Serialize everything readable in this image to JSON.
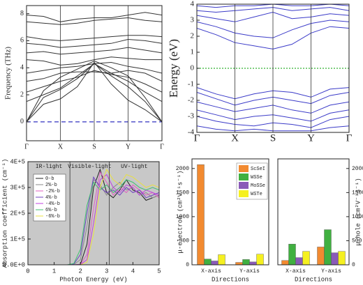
{
  "chart_data": [
    {
      "type": "line",
      "ylabel": "Frequency (THz)",
      "color": "#333333",
      "xgrid": true,
      "hline": 0,
      "hline_color": "#3030c0",
      "x": [
        0,
        0.5,
        1,
        1.5,
        2,
        2.5,
        3,
        3.5,
        4
      ],
      "xlim": [
        0,
        4
      ],
      "xticks": [
        {
          "value": 0,
          "label": "Γ"
        },
        {
          "value": 1,
          "label": "X"
        },
        {
          "value": 2,
          "label": "S"
        },
        {
          "value": 3,
          "label": "Y"
        },
        {
          "value": 4,
          "label": "Γ"
        }
      ],
      "ylim": [
        -1.4,
        8.6
      ],
      "yticks": [
        0,
        2,
        4,
        6,
        8
      ],
      "series": [
        {
          "values": [
            0,
            1.3,
            1.7,
            2.6,
            4.4,
            2.8,
            1.6,
            0.9,
            0
          ]
        },
        {
          "values": [
            0,
            1.8,
            2.4,
            3.2,
            4.3,
            3.4,
            2.6,
            1.5,
            0
          ]
        },
        {
          "values": [
            0,
            2.3,
            3.3,
            3.9,
            4.5,
            4.0,
            3.4,
            1.8,
            0
          ]
        },
        {
          "values": [
            1.5,
            2.0,
            2.5,
            3.4,
            4.3,
            3.6,
            3.0,
            2.2,
            1.5
          ]
        },
        {
          "values": [
            2.2,
            2.6,
            3.0,
            3.3,
            3.8,
            3.5,
            3.3,
            2.8,
            2.2
          ]
        },
        {
          "values": [
            3.0,
            3.2,
            3.6,
            3.7,
            3.7,
            3.6,
            3.8,
            3.6,
            3.0
          ]
        },
        {
          "values": [
            3.6,
            3.8,
            4.0,
            4.1,
            4.3,
            4.4,
            4.1,
            3.9,
            3.6
          ]
        },
        {
          "values": [
            4.6,
            4.5,
            4.2,
            4.3,
            4.6,
            4.8,
            4.7,
            4.6,
            4.6
          ]
        },
        {
          "values": [
            5.1,
            5.2,
            5.0,
            5.1,
            5.2,
            5.3,
            5.5,
            5.3,
            5.1
          ]
        },
        {
          "values": [
            5.8,
            5.7,
            5.5,
            5.6,
            5.7,
            5.8,
            6.1,
            6.0,
            5.8
          ]
        },
        {
          "values": [
            6.3,
            6.1,
            6.0,
            6.1,
            6.2,
            6.3,
            6.4,
            6.4,
            6.3
          ]
        },
        {
          "values": [
            7.4,
            7.3,
            7.2,
            7.3,
            7.5,
            7.6,
            7.7,
            7.5,
            7.4
          ]
        },
        {
          "values": [
            7.9,
            7.8,
            7.4,
            7.6,
            7.7,
            7.7,
            7.9,
            8.1,
            7.9
          ]
        }
      ]
    },
    {
      "type": "line",
      "ylabel": "Energy (eV)",
      "color": "#3a3ac8",
      "xgrid": true,
      "hline": 0,
      "hline_color": "#30b030",
      "x": [
        0,
        0.5,
        1,
        1.5,
        2,
        2.5,
        3,
        3.5,
        4
      ],
      "xlim": [
        0,
        4
      ],
      "xticks": [
        {
          "value": 0,
          "label": "Γ"
        },
        {
          "value": 1,
          "label": "X"
        },
        {
          "value": 2,
          "label": "S"
        },
        {
          "value": 3,
          "label": "Y"
        },
        {
          "value": 4,
          "label": "Γ"
        }
      ],
      "ylim": [
        -4,
        4
      ],
      "yticks": [
        -4,
        -3,
        -2,
        -1,
        0,
        1,
        2,
        3,
        4
      ],
      "series": [
        {
          "values": [
            2.5,
            2.1,
            1.6,
            1.4,
            1.2,
            1.5,
            2.2,
            2.6,
            2.5
          ]
        },
        {
          "values": [
            2.9,
            2.6,
            2.2,
            2.0,
            1.9,
            2.4,
            2.8,
            3.0,
            2.9
          ]
        },
        {
          "values": [
            3.3,
            3.1,
            2.9,
            3.2,
            3.5,
            3.1,
            3.2,
            3.4,
            3.3
          ]
        },
        {
          "values": [
            3.6,
            3.5,
            3.6,
            3.7,
            3.8,
            3.6,
            3.7,
            3.8,
            3.6
          ]
        },
        {
          "values": [
            3.9,
            3.8,
            3.9,
            3.9,
            4.0,
            3.9,
            3.9,
            4.0,
            3.9
          ]
        },
        {
          "values": [
            -1.2,
            -1.6,
            -1.9,
            -1.6,
            -1.4,
            -1.5,
            -1.8,
            -1.3,
            -1.2
          ]
        },
        {
          "values": [
            -1.5,
            -1.9,
            -2.3,
            -2.0,
            -1.8,
            -2.0,
            -2.2,
            -1.7,
            -1.5
          ]
        },
        {
          "values": [
            -2.1,
            -2.4,
            -2.7,
            -2.5,
            -2.3,
            -2.6,
            -2.8,
            -2.3,
            -2.1
          ]
        },
        {
          "values": [
            -2.6,
            -2.9,
            -3.2,
            -3.0,
            -2.9,
            -3.1,
            -3.3,
            -2.8,
            -2.6
          ]
        },
        {
          "values": [
            -3.0,
            -3.3,
            -3.5,
            -3.6,
            -3.4,
            -3.5,
            -3.7,
            -3.2,
            -3.0
          ]
        },
        {
          "values": [
            -3.6,
            -3.8,
            -3.9,
            -3.8,
            -3.9,
            -3.9,
            -3.9,
            -3.7,
            -3.6
          ]
        }
      ]
    },
    {
      "type": "line",
      "ylabel": "Absorption coefficient (cm⁻¹)",
      "xlabel": "Photon Energy (eV)",
      "background": "#c8c8c8",
      "legend": "upper left",
      "regions": [
        {
          "label": "IR-light",
          "from": 0,
          "to": 1.6
        },
        {
          "label": "Visible-light",
          "from": 1.6,
          "to": 3.1
        },
        {
          "label": "UV-light",
          "from": 3.1,
          "to": 5
        }
      ],
      "x": [
        0,
        0.25,
        0.5,
        0.75,
        1,
        1.25,
        1.5,
        1.75,
        2,
        2.25,
        2.5,
        2.75,
        3,
        3.25,
        3.5,
        3.75,
        4,
        4.25,
        4.5,
        4.75,
        5
      ],
      "xlim": [
        0,
        5
      ],
      "xticks": [
        0,
        1,
        2,
        3,
        4,
        5
      ],
      "ylim": [
        0,
        400000
      ],
      "yticks": [
        {
          "value": 0,
          "label": "0.0E+0"
        },
        {
          "value": 100000,
          "label": "1E+5"
        },
        {
          "value": 200000,
          "label": "2E+5"
        },
        {
          "value": 300000,
          "label": "3E+5"
        },
        {
          "value": 400000,
          "label": "4E+5"
        }
      ],
      "series": [
        {
          "name": "0-b",
          "color": "#202020",
          "values": [
            0,
            0,
            0,
            0,
            0,
            0,
            0,
            0,
            2000,
            80000,
            300000,
            370000,
            280000,
            260000,
            290000,
            330000,
            290000,
            280000,
            250000,
            260000,
            270000
          ]
        },
        {
          "name": "2%-b",
          "color": "#8a8a8a",
          "values": [
            0,
            0,
            0,
            0,
            0,
            0,
            0,
            1000,
            20000,
            150000,
            330000,
            310000,
            270000,
            300000,
            320000,
            290000,
            300000,
            270000,
            280000,
            260000,
            270000
          ]
        },
        {
          "name": "-2%-b",
          "color": "#e060c0",
          "values": [
            0,
            0,
            0,
            0,
            0,
            0,
            0,
            0,
            1000,
            40000,
            220000,
            360000,
            320000,
            270000,
            300000,
            280000,
            310000,
            290000,
            270000,
            280000,
            260000
          ]
        },
        {
          "name": "4%-b",
          "color": "#7040c0",
          "values": [
            0,
            0,
            0,
            0,
            0,
            0,
            0,
            3000,
            40000,
            200000,
            340000,
            300000,
            280000,
            290000,
            270000,
            300000,
            280000,
            290000,
            260000,
            270000,
            280000
          ]
        },
        {
          "name": "-4%-b",
          "color": "#c040e0",
          "values": [
            0,
            0,
            0,
            0,
            0,
            0,
            0,
            0,
            500,
            20000,
            160000,
            330000,
            350000,
            300000,
            280000,
            310000,
            300000,
            270000,
            290000,
            280000,
            270000
          ]
        },
        {
          "name": "6%-b",
          "color": "#40c070",
          "values": [
            0,
            0,
            0,
            0,
            0,
            0,
            0,
            5000,
            60000,
            230000,
            320000,
            290000,
            310000,
            280000,
            300000,
            330000,
            320000,
            300000,
            290000,
            300000,
            290000
          ]
        },
        {
          "name": "-6%-b",
          "color": "#e8e040",
          "values": [
            0,
            0,
            0,
            0,
            0,
            0,
            0,
            0,
            0,
            10000,
            120000,
            300000,
            370000,
            330000,
            310000,
            350000,
            340000,
            320000,
            300000,
            310000,
            300000
          ]
        }
      ]
    },
    {
      "type": "bar",
      "ylabel": "μ-electron (cm²V⁻¹s⁻¹)",
      "xlabel": "Directions",
      "legend": "upper right",
      "axis_side": "left",
      "categories": [
        "X-axis",
        "Y-axis"
      ],
      "ylim": [
        0,
        2200
      ],
      "yticks": [
        0,
        500,
        1000,
        1500,
        2000
      ],
      "series": [
        {
          "name": "ScSeI",
          "color": "#f28a30",
          "values": [
            2080,
            50
          ]
        },
        {
          "name": "WSSe",
          "color": "#40b040",
          "values": [
            120,
            110
          ]
        },
        {
          "name": "MoSSe",
          "color": "#8a5ab8",
          "values": [
            80,
            60
          ]
        },
        {
          "name": "WSTe",
          "color": "#f5f020",
          "values": [
            210,
            220
          ]
        }
      ]
    },
    {
      "type": "bar",
      "ylabel": "μ-hole (cm²V⁻¹s⁻¹)",
      "xlabel": "Directions",
      "legend": "upper left",
      "axis_side": "right",
      "categories": [
        "X-axis",
        "Y-axis"
      ],
      "ylim": [
        0,
        2200
      ],
      "yticks": [
        0,
        500,
        1000,
        1500,
        2000
      ],
      "series": [
        {
          "name": "ScSeI",
          "color": "#f28a30",
          "values": [
            90,
            370
          ]
        },
        {
          "name": "WSSe",
          "color": "#40b040",
          "values": [
            430,
            730
          ]
        },
        {
          "name": "MoSSe",
          "color": "#8a5ab8",
          "values": [
            150,
            250
          ]
        },
        {
          "name": "WSTe",
          "color": "#f5f020",
          "values": [
            280,
            280
          ]
        }
      ]
    }
  ]
}
